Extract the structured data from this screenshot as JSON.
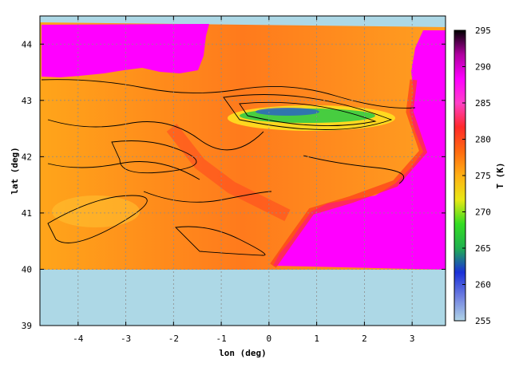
{
  "chart_data": {
    "type": "heatmap",
    "title": "",
    "xlabel": "lon (deg)",
    "ylabel": "lat (deg)",
    "xlim": [
      -4.8,
      3.7
    ],
    "ylim": [
      39,
      44.5
    ],
    "xticks": [
      -4,
      -3,
      -2,
      -1,
      0,
      1,
      2,
      3
    ],
    "yticks": [
      39,
      40,
      41,
      42,
      43,
      44
    ],
    "grid": true,
    "colorbar": {
      "label": "T (K)",
      "range": [
        255,
        295
      ],
      "ticks": [
        255,
        260,
        265,
        270,
        275,
        280,
        285,
        290,
        295
      ],
      "colors": [
        "#b0d4e6",
        "#6f7fe0",
        "#1a30d8",
        "#20b050",
        "#33dd22",
        "#e8e815",
        "#ffb015",
        "#ff6a10",
        "#ff2a2a",
        "#ff40c8",
        "#ff00ff",
        "#b000a0",
        "#000000"
      ]
    },
    "regions": {
      "no_data_color": "#add8e6",
      "sea_color": "#ff00ff",
      "land_range_K": [
        272,
        283
      ],
      "mountain_min_K": 265
    }
  }
}
